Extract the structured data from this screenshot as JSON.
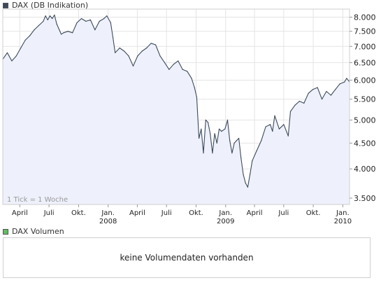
{
  "price_legend": {
    "label": "DAX (DB Indikation)",
    "color": "#3c4a5a"
  },
  "volume_legend": {
    "label": "DAX Volumen",
    "color": "#5fbf5f"
  },
  "tick_note": "1 Tick = 1 Woche",
  "volume_message": "keine Volumendaten vorhanden",
  "colors": {
    "line": "#3c4a5a",
    "fill": "#eef0fb",
    "grid": "#e4e4e4",
    "frame": "#cfcfcf"
  },
  "chart_data": {
    "type": "area",
    "title": "DAX (DB Indikation)",
    "scale": "log",
    "ylim": [
      3400,
      8300
    ],
    "yticks": [
      3500,
      4000,
      4500,
      5000,
      5500,
      6000,
      6500,
      7000,
      7500,
      8000
    ],
    "ytick_labels": [
      "3.500",
      "4.000",
      "4.500",
      "5.000",
      "5.500",
      "6.000",
      "6.500",
      "7.000",
      "7.500",
      "8.000"
    ],
    "xlim": [
      "2007-02-07",
      "2010-01-22"
    ],
    "xticks": [
      {
        "date": "2007-04-01",
        "label": "April",
        "sub": ""
      },
      {
        "date": "2007-07-01",
        "label": "Juli",
        "sub": ""
      },
      {
        "date": "2007-10-01",
        "label": "Okt.",
        "sub": ""
      },
      {
        "date": "2008-01-01",
        "label": "Jan.",
        "sub": "2008"
      },
      {
        "date": "2008-04-01",
        "label": "April",
        "sub": ""
      },
      {
        "date": "2008-07-01",
        "label": "Juli",
        "sub": ""
      },
      {
        "date": "2008-10-01",
        "label": "Okt.",
        "sub": ""
      },
      {
        "date": "2009-01-01",
        "label": "Jan.",
        "sub": "2009"
      },
      {
        "date": "2009-04-01",
        "label": "April",
        "sub": ""
      },
      {
        "date": "2009-07-01",
        "label": "Juli",
        "sub": ""
      },
      {
        "date": "2009-10-01",
        "label": "Okt.",
        "sub": ""
      },
      {
        "date": "2010-01-01",
        "label": "Jan.",
        "sub": "2010"
      }
    ],
    "series": [
      {
        "values": [
          [
            "2007-02-07",
            6600
          ],
          [
            "2007-02-21",
            6800
          ],
          [
            "2007-03-07",
            6550
          ],
          [
            "2007-03-21",
            6700
          ],
          [
            "2007-04-04",
            6950
          ],
          [
            "2007-04-18",
            7200
          ],
          [
            "2007-05-02",
            7350
          ],
          [
            "2007-05-16",
            7550
          ],
          [
            "2007-05-30",
            7700
          ],
          [
            "2007-06-13",
            7850
          ],
          [
            "2007-06-20",
            8050
          ],
          [
            "2007-06-27",
            7900
          ],
          [
            "2007-07-04",
            8050
          ],
          [
            "2007-07-11",
            7950
          ],
          [
            "2007-07-18",
            8080
          ],
          [
            "2007-07-25",
            7750
          ],
          [
            "2007-08-08",
            7400
          ],
          [
            "2007-08-15",
            7450
          ],
          [
            "2007-08-29",
            7500
          ],
          [
            "2007-09-12",
            7450
          ],
          [
            "2007-09-26",
            7800
          ],
          [
            "2007-10-10",
            7950
          ],
          [
            "2007-10-24",
            7850
          ],
          [
            "2007-11-07",
            7900
          ],
          [
            "2007-11-21",
            7550
          ],
          [
            "2007-12-05",
            7850
          ],
          [
            "2007-12-19",
            7950
          ],
          [
            "2007-12-28",
            8050
          ],
          [
            "2008-01-09",
            7800
          ],
          [
            "2008-01-16",
            7300
          ],
          [
            "2008-01-23",
            6800
          ],
          [
            "2008-02-06",
            6950
          ],
          [
            "2008-02-20",
            6850
          ],
          [
            "2008-03-05",
            6700
          ],
          [
            "2008-03-19",
            6400
          ],
          [
            "2008-04-02",
            6700
          ],
          [
            "2008-04-16",
            6850
          ],
          [
            "2008-04-30",
            6950
          ],
          [
            "2008-05-14",
            7100
          ],
          [
            "2008-05-28",
            7050
          ],
          [
            "2008-06-11",
            6700
          ],
          [
            "2008-06-25",
            6500
          ],
          [
            "2008-07-09",
            6300
          ],
          [
            "2008-07-23",
            6450
          ],
          [
            "2008-08-06",
            6550
          ],
          [
            "2008-08-20",
            6300
          ],
          [
            "2008-09-03",
            6250
          ],
          [
            "2008-09-17",
            6050
          ],
          [
            "2008-09-26",
            5800
          ],
          [
            "2008-10-03",
            5550
          ],
          [
            "2008-10-10",
            4600
          ],
          [
            "2008-10-17",
            4800
          ],
          [
            "2008-10-24",
            4300
          ],
          [
            "2008-10-31",
            5000
          ],
          [
            "2008-11-07",
            4950
          ],
          [
            "2008-11-14",
            4700
          ],
          [
            "2008-11-21",
            4300
          ],
          [
            "2008-11-28",
            4700
          ],
          [
            "2008-12-05",
            4500
          ],
          [
            "2008-12-12",
            4800
          ],
          [
            "2008-12-19",
            4750
          ],
          [
            "2008-12-30",
            4800
          ],
          [
            "2009-01-07",
            5000
          ],
          [
            "2009-01-14",
            4550
          ],
          [
            "2009-01-21",
            4300
          ],
          [
            "2009-01-28",
            4500
          ],
          [
            "2009-02-04",
            4550
          ],
          [
            "2009-02-11",
            4600
          ],
          [
            "2009-02-18",
            4200
          ],
          [
            "2009-02-25",
            3900
          ],
          [
            "2009-03-04",
            3750
          ],
          [
            "2009-03-11",
            3680
          ],
          [
            "2009-03-18",
            3900
          ],
          [
            "2009-03-25",
            4150
          ],
          [
            "2009-04-08",
            4350
          ],
          [
            "2009-04-22",
            4550
          ],
          [
            "2009-05-06",
            4850
          ],
          [
            "2009-05-20",
            4900
          ],
          [
            "2009-05-27",
            4750
          ],
          [
            "2009-06-03",
            5100
          ],
          [
            "2009-06-17",
            4800
          ],
          [
            "2009-07-01",
            4900
          ],
          [
            "2009-07-15",
            4650
          ],
          [
            "2009-07-22",
            5200
          ],
          [
            "2009-08-05",
            5350
          ],
          [
            "2009-08-19",
            5450
          ],
          [
            "2009-09-02",
            5400
          ],
          [
            "2009-09-16",
            5650
          ],
          [
            "2009-09-30",
            5750
          ],
          [
            "2009-10-14",
            5800
          ],
          [
            "2009-10-28",
            5500
          ],
          [
            "2009-11-11",
            5700
          ],
          [
            "2009-11-25",
            5600
          ],
          [
            "2009-12-09",
            5750
          ],
          [
            "2009-12-23",
            5900
          ],
          [
            "2010-01-06",
            5950
          ],
          [
            "2010-01-13",
            6050
          ],
          [
            "2010-01-22",
            5950
          ]
        ]
      }
    ]
  }
}
